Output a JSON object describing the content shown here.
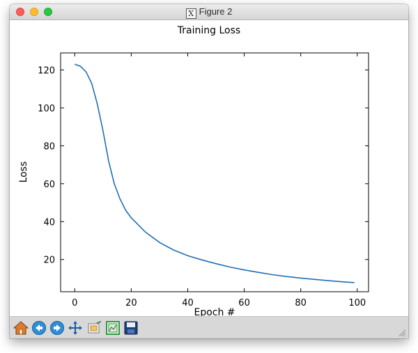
{
  "window": {
    "title": "Figure 2"
  },
  "toolbar": {
    "buttons": [
      {
        "name": "home-button",
        "icon": "home-icon"
      },
      {
        "name": "back-button",
        "icon": "back-arrow-icon"
      },
      {
        "name": "forward-button",
        "icon": "forward-arrow-icon"
      },
      {
        "name": "pan-button",
        "icon": "pan-arrows-icon"
      },
      {
        "name": "zoom-button",
        "icon": "zoom-rect-icon"
      },
      {
        "name": "subplots-button",
        "icon": "subplots-icon"
      },
      {
        "name": "save-button",
        "icon": "save-icon"
      }
    ]
  },
  "chart_data": {
    "type": "line",
    "title": "Training Loss",
    "xlabel": "Epoch #",
    "ylabel": "Loss",
    "xlim": [
      -5,
      104
    ],
    "ylim": [
      3,
      129
    ],
    "xticks": [
      0,
      20,
      40,
      60,
      80,
      100
    ],
    "yticks": [
      20,
      40,
      60,
      80,
      100,
      120
    ],
    "grid": false,
    "color": "#1f6fb4",
    "series": [
      {
        "x": [
          0,
          2,
          4,
          6,
          8,
          10,
          12,
          14,
          16,
          18,
          20,
          25,
          30,
          35,
          40,
          45,
          50,
          55,
          60,
          65,
          70,
          75,
          80,
          85,
          90,
          95,
          99
        ],
        "values": [
          123,
          122,
          119,
          113,
          102,
          88,
          72,
          60,
          52,
          46,
          42,
          34.5,
          29,
          25,
          22,
          19.8,
          17.8,
          16,
          14.5,
          13.2,
          12,
          11,
          10.2,
          9.5,
          8.8,
          8.2,
          7.8
        ]
      }
    ]
  }
}
